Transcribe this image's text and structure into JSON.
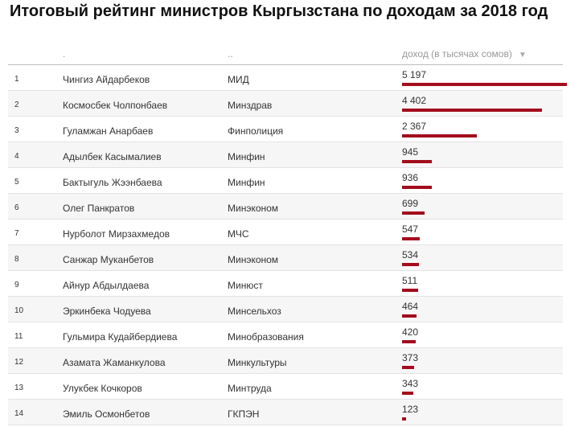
{
  "title": "Итоговый рейтинг министров Кыргызстана по доходам за 2018 год",
  "header": {
    "rank": "",
    "name": ".",
    "ministry": "..",
    "income": "доход (в тысячах сомов)",
    "sort_icon": "triangle-down-icon"
  },
  "colors": {
    "bar": "#a30d1c"
  },
  "chart_data": {
    "type": "bar",
    "title": "Итоговый рейтинг министров Кыргызстана по доходам за 2018 год",
    "ylabel": "доход (в тысячах сомов)",
    "categories": [
      "Чингиз Айдарбеков",
      "Космосбек Чолпонбаев",
      "Гуламжан Анарбаев",
      "Адылбек Касымалиев",
      "Бактыгуль Жээнбаева",
      "Олег Панкратов",
      "Нурболот Мирзахмедов",
      "Санжар Муканбетов",
      "Айнур Абдылдаева",
      "Эркинбека Чодуева",
      "Гульмира Кудайбердиева",
      "Азамата Жаманкулова",
      "Улукбек Кочкоров",
      "Эмиль Осмонбетов"
    ],
    "values": [
      5197,
      4402,
      2367,
      945,
      936,
      699,
      547,
      534,
      511,
      464,
      420,
      373,
      343,
      123
    ],
    "xlim": [
      0,
      5197
    ]
  },
  "rows": [
    {
      "rank": "1",
      "name": "Чингиз Айдарбеков",
      "ministry": "МИД",
      "value": 5197,
      "value_label": "5 197"
    },
    {
      "rank": "2",
      "name": "Космосбек Чолпонбаев",
      "ministry": "Минздрав",
      "value": 4402,
      "value_label": "4 402"
    },
    {
      "rank": "3",
      "name": "Гуламжан Анарбаев",
      "ministry": "Финполиция",
      "value": 2367,
      "value_label": "2 367"
    },
    {
      "rank": "4",
      "name": "Адылбек Касымалиев",
      "ministry": "Минфин",
      "value": 945,
      "value_label": "945"
    },
    {
      "rank": "5",
      "name": "Бактыгуль Жээнбаева",
      "ministry": "Минфин",
      "value": 936,
      "value_label": "936"
    },
    {
      "rank": "6",
      "name": "Олег Панкратов",
      "ministry": "Минэконом",
      "value": 699,
      "value_label": "699"
    },
    {
      "rank": "7",
      "name": "Нурболот Мирзахмедов",
      "ministry": "МЧС",
      "value": 547,
      "value_label": "547"
    },
    {
      "rank": "8",
      "name": "Санжар Муканбетов",
      "ministry": "Минэконом",
      "value": 534,
      "value_label": "534"
    },
    {
      "rank": "9",
      "name": "Айнур Абдылдаева",
      "ministry": "Минюст",
      "value": 511,
      "value_label": "511"
    },
    {
      "rank": "10",
      "name": "Эркинбека Чодуева",
      "ministry": "Минсельхоз",
      "value": 464,
      "value_label": "464"
    },
    {
      "rank": "11",
      "name": "Гульмира Кудайбердиева",
      "ministry": "Минобразования",
      "value": 420,
      "value_label": "420"
    },
    {
      "rank": "12",
      "name": "Азамата Жаманкулова",
      "ministry": "Минкультуры",
      "value": 373,
      "value_label": "373"
    },
    {
      "rank": "13",
      "name": "Улукбек Кочкоров",
      "ministry": "Минтруда",
      "value": 343,
      "value_label": "343"
    },
    {
      "rank": "14",
      "name": "Эмиль Осмонбетов",
      "ministry": "ГКПЭН",
      "value": 123,
      "value_label": "123"
    }
  ]
}
